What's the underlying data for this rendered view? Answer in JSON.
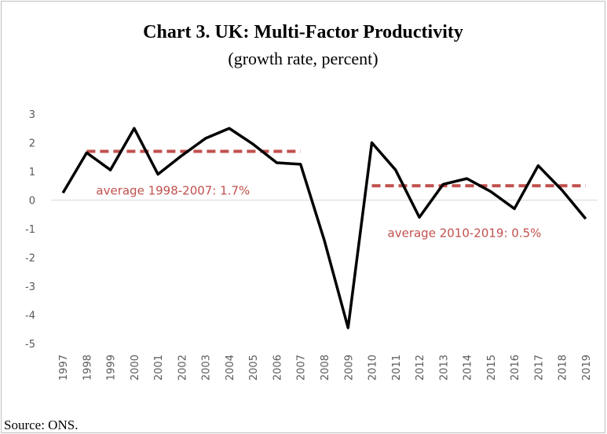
{
  "chart_data": {
    "type": "line",
    "title": "Chart 3. UK: Multi-Factor Productivity",
    "subtitle": "(growth rate, percent)",
    "source": "Source: ONS.",
    "categories": [
      "1997",
      "1998",
      "1999",
      "2000",
      "2001",
      "2002",
      "2003",
      "2004",
      "2005",
      "2006",
      "2007",
      "2008",
      "2009",
      "2010",
      "2011",
      "2012",
      "2013",
      "2014",
      "2015",
      "2016",
      "2017",
      "2018",
      "2019"
    ],
    "series": [
      {
        "name": "Multi-Factor Productivity",
        "color": "#000000",
        "values": [
          0.25,
          1.65,
          1.05,
          2.5,
          0.9,
          1.55,
          2.15,
          2.5,
          1.95,
          1.3,
          1.25,
          -1.4,
          -4.45,
          2.0,
          1.05,
          -0.6,
          0.55,
          0.75,
          0.3,
          -0.3,
          1.2,
          0.35,
          -0.65
        ]
      }
    ],
    "averages": [
      {
        "label": "average 1998-2007: 1.7%",
        "value": 1.7,
        "start": "1998",
        "end": "2007",
        "color": "#c0504d"
      },
      {
        "label": "average 2010-2019: 0.5%",
        "value": 0.5,
        "start": "2010",
        "end": "2019",
        "color": "#c0504d"
      }
    ],
    "ylim": [
      -5,
      3
    ],
    "yticks": [
      3,
      2,
      1,
      0,
      -1,
      -2,
      -3,
      -4,
      -5
    ],
    "grid": false
  }
}
